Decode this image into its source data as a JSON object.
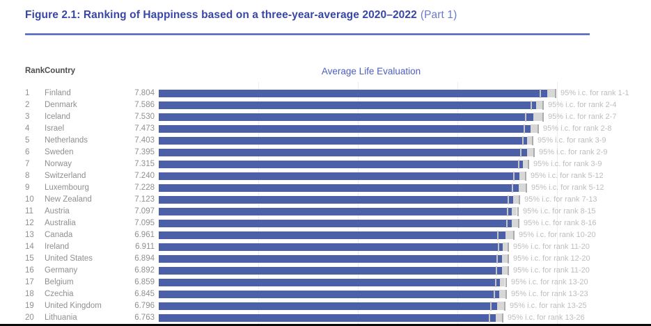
{
  "figure": {
    "title": "Figure 2.1: Ranking of Happiness based on a three-year-average 2020–2022",
    "title_suffix": "(Part 1)"
  },
  "table_header": {
    "rank": "Rank",
    "country": "Country"
  },
  "chart_data": {
    "type": "bar",
    "orientation": "horizontal",
    "title": "Average Life Evaluation",
    "xlim": [
      0,
      8.55
    ],
    "gridlines_x": [
      2,
      4,
      6,
      8
    ],
    "bar_color": "#4c60a7",
    "ci_note_format": "95% i.c. for rank",
    "rows": [
      {
        "rank": 1,
        "country": "Finland",
        "value": 7.804,
        "value_label": "7.804",
        "ci_half": 0.15,
        "ci_label": "95% i.c. for rank 1-1"
      },
      {
        "rank": 2,
        "country": "Denmark",
        "value": 7.586,
        "value_label": "7.586",
        "ci_half": 0.12,
        "ci_label": "95% i.c. for rank 2-4"
      },
      {
        "rank": 3,
        "country": "Iceland",
        "value": 7.53,
        "value_label": "7.530",
        "ci_half": 0.18,
        "ci_label": "95% i.c. for rank 2-7"
      },
      {
        "rank": 4,
        "country": "Israel",
        "value": 7.473,
        "value_label": "7.473",
        "ci_half": 0.14,
        "ci_label": "95% i.c. for rank 2-8"
      },
      {
        "rank": 5,
        "country": "Netherlands",
        "value": 7.403,
        "value_label": "7.403",
        "ci_half": 0.1,
        "ci_label": "95% i.c. for rank 3-9"
      },
      {
        "rank": 6,
        "country": "Sweden",
        "value": 7.395,
        "value_label": "7.395",
        "ci_half": 0.13,
        "ci_label": "95% i.c. for rank 2-9"
      },
      {
        "rank": 7,
        "country": "Norway",
        "value": 7.315,
        "value_label": "7.315",
        "ci_half": 0.1,
        "ci_label": "95% i.c. for rank 3-9"
      },
      {
        "rank": 8,
        "country": "Switzerland",
        "value": 7.24,
        "value_label": "7.240",
        "ci_half": 0.12,
        "ci_label": "95% i.c. for rank 5-12"
      },
      {
        "rank": 9,
        "country": "Luxembourg",
        "value": 7.228,
        "value_label": "7.228",
        "ci_half": 0.14,
        "ci_label": "95% i.c. for rank 5-12"
      },
      {
        "rank": 10,
        "country": "New Zealand",
        "value": 7.123,
        "value_label": "7.123",
        "ci_half": 0.11,
        "ci_label": "95% i.c. for rank 7-13"
      },
      {
        "rank": 11,
        "country": "Austria",
        "value": 7.097,
        "value_label": "7.097",
        "ci_half": 0.1,
        "ci_label": "95% i.c. for rank 8-15"
      },
      {
        "rank": 12,
        "country": "Australia",
        "value": 7.095,
        "value_label": "7.095",
        "ci_half": 0.12,
        "ci_label": "95% i.c. for rank 8-16"
      },
      {
        "rank": 13,
        "country": "Canada",
        "value": 6.961,
        "value_label": "6.961",
        "ci_half": 0.16,
        "ci_label": "95% i.c. for rank 10-20"
      },
      {
        "rank": 14,
        "country": "Ireland",
        "value": 6.911,
        "value_label": "6.911",
        "ci_half": 0.1,
        "ci_label": "95% i.c. for rank 11-20"
      },
      {
        "rank": 15,
        "country": "United States",
        "value": 6.894,
        "value_label": "6.894",
        "ci_half": 0.11,
        "ci_label": "95% i.c. for rank 12-20"
      },
      {
        "rank": 16,
        "country": "Germany",
        "value": 6.892,
        "value_label": "6.892",
        "ci_half": 0.12,
        "ci_label": "95% i.c. for rank 11-20"
      },
      {
        "rank": 17,
        "country": "Belgium",
        "value": 6.859,
        "value_label": "6.859",
        "ci_half": 0.1,
        "ci_label": "95% i.c. for rank 13-20"
      },
      {
        "rank": 18,
        "country": "Czechia",
        "value": 6.845,
        "value_label": "6.845",
        "ci_half": 0.12,
        "ci_label": "95% i.c. for rank 13-23"
      },
      {
        "rank": 19,
        "country": "United Kingdom",
        "value": 6.796,
        "value_label": "6.796",
        "ci_half": 0.14,
        "ci_label": "95% i.c. for rank 13-25"
      },
      {
        "rank": 20,
        "country": "Lithuania",
        "value": 6.763,
        "value_label": "6.763",
        "ci_half": 0.13,
        "ci_label": "95% i.c. for rank 13-26"
      }
    ]
  },
  "colors": {
    "title": "#3847a5",
    "title_suffix": "#6b79cb",
    "rule": "#4d5fb8",
    "bar": "#4c60a7",
    "row_text": "#8f8f8f",
    "header_text": "#4d4d4d",
    "ci_label_text": "#bdbdbd",
    "ci_band": "#d7d7d7",
    "gridline": "#ededed",
    "bottom_rule": "#0a0a0a"
  }
}
